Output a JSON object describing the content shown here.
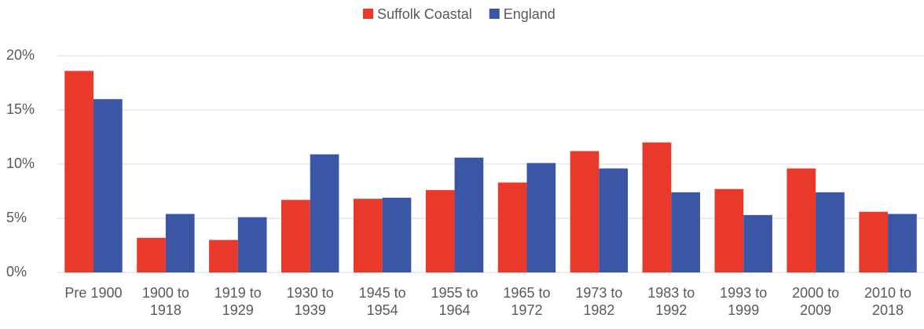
{
  "chart_data": {
    "type": "bar",
    "categories": [
      "Pre 1900",
      "1900 to 1918",
      "1919 to 1929",
      "1930 to 1939",
      "1945 to 1954",
      "1955 to 1964",
      "1965 to 1972",
      "1973 to 1982",
      "1983 to 1992",
      "1993 to 1999",
      "2000 to 2009",
      "2010 to 2018"
    ],
    "series": [
      {
        "name": "Suffolk Coastal",
        "color": "#e8392b",
        "values": [
          18.6,
          3.2,
          3.0,
          6.7,
          6.8,
          7.6,
          8.3,
          11.2,
          12.0,
          7.7,
          9.6,
          5.6
        ]
      },
      {
        "name": "England",
        "color": "#3c56a6",
        "values": [
          16.0,
          5.4,
          5.1,
          10.9,
          6.9,
          10.6,
          10.1,
          9.6,
          7.4,
          5.3,
          7.4,
          5.4
        ]
      }
    ],
    "ylim": [
      0,
      20
    ],
    "yticks": [
      {
        "value": 0,
        "label": "0%"
      },
      {
        "value": 5,
        "label": "5%"
      },
      {
        "value": 10,
        "label": "10%"
      },
      {
        "value": 15,
        "label": "15%"
      },
      {
        "value": 20,
        "label": "20%"
      }
    ],
    "grid": true,
    "legend": "top"
  }
}
